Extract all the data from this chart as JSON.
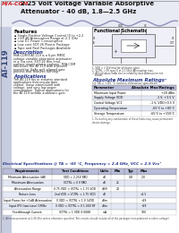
{
  "title_line1": "2.25 Volt Voltage Variable Absorptive",
  "title_line2": "Attenuator - 40 dB, 1.8—2.5 GHz",
  "part_number": "AT-119",
  "manufacturer": "M/A-COM",
  "features_title": "Features",
  "features": [
    "Single Positive Voltage Control (0 to +2.25 Volts)",
    "+40 dB Attenuation Range at 2.1 GHz",
    "Low DC Power Consumption",
    "Low cost SOT-26 Plastic Package",
    "Tape and Reel Packages Available"
  ],
  "description_title": "Description",
  "description_text": "M/A-COM's AT-119 is a 6-pin MMIC voltage variable absorptive attenuator in a low cost, SOT-26 thin-lead, surface mount plastic package. M/A-COM fabricates the AT-119 with a proven monolithic GaAs well-aligned gate process that features full chip passivation for performance and reliability.",
  "applications_title": "Applications",
  "applications_text": "The AT-119 fits in industry standard applications that require gain control, linear attenuation with voltage, and very low power consumption. Typical applications for the AT-119 include automatic gain control circuits in satellite radio receivers directive antenna systems.",
  "functional_title": "Functional Schematic",
  "ratings_title": "Absolute Maximum Ratings",
  "ratings_subtitle1": "(@ TA = +85 °C (unless otherwise specified))",
  "ratings_headers": [
    "Parameter",
    "Absolute Max/Ratings"
  ],
  "ratings_rows": [
    [
      "Maximum Input Power",
      "+20 dBm"
    ],
    [
      "Supply Voltage VDD",
      "-1 V, +3.5 V"
    ],
    [
      "Control Voltage VC1",
      "-1 V, VDD+0.5 V"
    ],
    [
      "Operating Temperature",
      "-65°C to +85°C"
    ],
    [
      "Storage Temperature",
      "-65°C to +150°C"
    ]
  ],
  "elec_spec_title": "Electrical Specifications @ TA = -65 °C, Frequency = 2.4 GHz, VCC = 2.5 Vcc¹",
  "elec_headers": [
    "Requirements",
    "Test Conditions",
    "Units",
    "Min",
    "Typ",
    "Max"
  ],
  "elec_rows": [
    [
      "Minimum Attenuation (dB)",
      "VDD = 2.25V PAD",
      "dB",
      "",
      "0.8",
      "2.0"
    ],
    [
      "Maximum Attenuation",
      "VCTRL = 0 V PAD",
      "dB",
      "25",
      "",
      ""
    ],
    [
      "Attenuation Range",
      "0.75 VDD < VCTRL < 1.75 VDD",
      "dB/V",
      "24",
      "",
      ""
    ],
    [
      "Return Loss",
      "2nd VDD < VCTRL < 1.75 VDD",
      "dB",
      "",
      "",
      "<1.5"
    ],
    [
      "Input Power for +1dB Attenuation",
      "0 VDD < VCTRL < 1.0 3VDD",
      "dBm",
      "",
      "",
      "+19"
    ],
    [
      "Input IP3 (two tone) 1MHz",
      "0 VDD < VCTRL < 0 1.000 RF",
      "dBm",
      "",
      "",
      "+29"
    ],
    [
      "Feedthrough Current",
      "VCTRL = 1 VDD 0.0688",
      "mA",
      "",
      "",
      "100"
    ]
  ],
  "wave_color": "#9090b8",
  "table_header_color": "#b8bcd8",
  "side_bg": "#c8cce0",
  "header_bg": "#e8eaf4",
  "body_bg": "#ffffff",
  "footnote": "1. All measurements at 2.45 GHz unless otherwise specified. Test results should include all of the packages (not polarized to either voltage)."
}
